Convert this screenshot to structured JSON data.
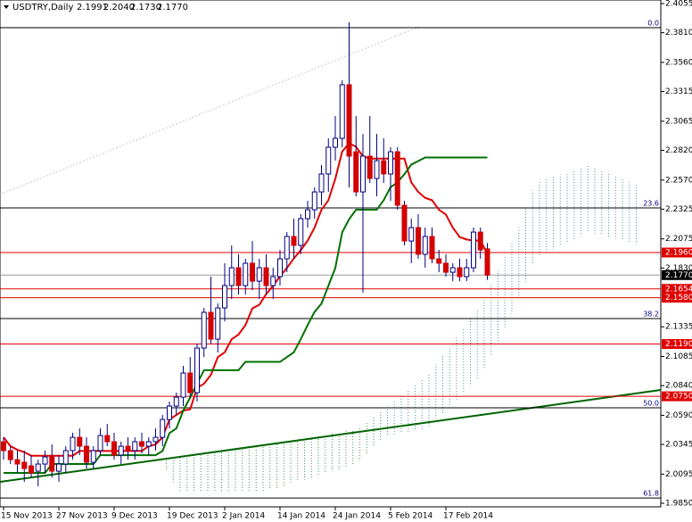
{
  "chart_data": {
    "type": "candlestick",
    "title": "USDTRY,Daily",
    "quote": [
      "2.1991",
      "2.2040",
      "2.1730",
      "2.1770"
    ],
    "categories": [
      "15 Nov 2013",
      null,
      null,
      null,
      null,
      null,
      null,
      null,
      "27 Nov 2013",
      null,
      null,
      null,
      null,
      null,
      null,
      null,
      "9 Dec 2013",
      null,
      null,
      null,
      null,
      null,
      null,
      null,
      "19 Dec 2013",
      null,
      null,
      null,
      null,
      null,
      null,
      null,
      "2 Jan 2014",
      null,
      null,
      null,
      null,
      null,
      null,
      null,
      "14 Jan 2014",
      null,
      null,
      null,
      null,
      null,
      null,
      null,
      "24 Jan 2014",
      null,
      null,
      null,
      null,
      null,
      null,
      null,
      "5 Feb 2014",
      null,
      null,
      null,
      null,
      null,
      null,
      null,
      "17 Feb 2014",
      null,
      null,
      null,
      null,
      null,
      null
    ],
    "open": [
      2.0368,
      2.0293,
      2.0217,
      2.0195,
      2.0165,
      2.012,
      2.018,
      2.024,
      2.012,
      2.018,
      2.0293,
      2.0405,
      2.033,
      2.0195,
      2.0293,
      2.042,
      2.0368,
      2.0255,
      2.033,
      2.0293,
      2.0368,
      2.033,
      2.0368,
      2.0405,
      2.0555,
      2.0668,
      2.0743,
      2.0946,
      2.0781,
      2.1156,
      2.1457,
      2.1231,
      2.1494,
      2.1682,
      2.1832,
      2.1682,
      2.187,
      2.1719,
      2.1832,
      2.1682,
      2.1757,
      2.1907,
      2.2095,
      2.202,
      2.2245,
      2.232,
      2.247,
      2.2621,
      2.2846,
      2.2921,
      2.3372,
      2.2808,
      2.247,
      2.2771,
      2.2583,
      2.2733,
      2.2621,
      2.2808,
      2.2358,
      2.2057,
      2.217,
      2.1945,
      2.2095,
      2.1907,
      2.187,
      2.1794,
      2.1832,
      2.1757,
      2.1832,
      2.2132,
      2.1991
    ],
    "high": [
      2.0405,
      2.033,
      2.0293,
      2.0293,
      2.0255,
      2.0217,
      2.0293,
      2.0345,
      2.0255,
      2.033,
      2.0443,
      2.048,
      2.0405,
      2.033,
      2.048,
      2.0518,
      2.0443,
      2.0368,
      2.0405,
      2.0405,
      2.0443,
      2.0405,
      2.048,
      2.0593,
      2.0706,
      2.0781,
      2.1006,
      2.1081,
      2.1194,
      2.1494,
      2.1757,
      2.1532,
      2.187,
      2.202,
      2.1945,
      2.1907,
      2.2057,
      2.1907,
      2.1945,
      2.1832,
      2.1982,
      2.2132,
      2.2245,
      2.2283,
      2.2395,
      2.2508,
      2.2696,
      2.2921,
      2.3109,
      2.3409,
      2.3897,
      2.3109,
      2.2958,
      2.3109,
      2.2958,
      2.2921,
      2.2846,
      2.2846,
      2.2395,
      2.2245,
      2.2283,
      2.217,
      2.217,
      2.1982,
      2.1945,
      2.187,
      2.1907,
      2.1907,
      2.217,
      2.217,
      2.204
    ],
    "low": [
      2.0217,
      2.018,
      2.0105,
      2.003,
      2.0067,
      1.9992,
      2.0105,
      2.0067,
      2.003,
      2.0105,
      2.0217,
      2.0255,
      2.0142,
      2.0142,
      2.0255,
      2.033,
      2.0217,
      2.018,
      2.0217,
      2.0217,
      2.027,
      2.0255,
      2.0293,
      2.033,
      2.048,
      2.0593,
      2.0668,
      2.0743,
      2.0706,
      2.1081,
      2.1194,
      2.1119,
      2.1381,
      2.1569,
      2.1607,
      2.1607,
      2.1644,
      2.1569,
      2.1607,
      2.1569,
      2.1682,
      2.1794,
      2.1907,
      2.1945,
      2.217,
      2.2245,
      2.2358,
      2.247,
      2.2733,
      2.2846,
      2.2508,
      2.2433,
      2.1622,
      2.2545,
      2.2433,
      2.2545,
      2.2395,
      2.232,
      2.202,
      2.187,
      2.1907,
      2.1832,
      2.187,
      2.1794,
      2.1757,
      2.1719,
      2.1719,
      2.1719,
      2.1794,
      2.1907,
      2.173
    ],
    "close": [
      2.0293,
      2.0217,
      2.018,
      2.0142,
      2.0105,
      2.018,
      2.024,
      2.012,
      2.018,
      2.0293,
      2.0405,
      2.033,
      2.0195,
      2.0293,
      2.042,
      2.0368,
      2.0255,
      2.033,
      2.0293,
      2.0368,
      2.033,
      2.0368,
      2.0405,
      2.0555,
      2.0668,
      2.0743,
      2.0946,
      2.0781,
      2.1156,
      2.1457,
      2.1231,
      2.1494,
      2.1682,
      2.1832,
      2.1682,
      2.187,
      2.1719,
      2.1832,
      2.1682,
      2.1757,
      2.1907,
      2.2095,
      2.202,
      2.2245,
      2.232,
      2.247,
      2.2621,
      2.2846,
      2.2921,
      2.3372,
      2.2771,
      2.247,
      2.2771,
      2.2583,
      2.2733,
      2.2621,
      2.2808,
      2.2358,
      2.2057,
      2.217,
      2.1945,
      2.2095,
      2.1907,
      2.187,
      2.1794,
      2.1832,
      2.1757,
      2.1832,
      2.2132,
      2.1982,
      2.177
    ],
    "bull_color": "#ffffff",
    "bear_color": "#d40000",
    "candle_outline": "#000080",
    "lines": [
      {
        "color": "#e00000",
        "values": [
          2.0405,
          2.033,
          2.03,
          2.028,
          2.025,
          2.025,
          2.025,
          2.025,
          2.025,
          2.025,
          2.025,
          2.029,
          2.029,
          2.029,
          2.029,
          2.029,
          2.029,
          2.029,
          2.029,
          2.029,
          2.029,
          2.033,
          2.0345,
          2.0405,
          2.0555,
          2.0593,
          2.063,
          2.064,
          2.082,
          2.0856,
          2.093,
          2.108,
          2.112,
          2.123,
          2.127,
          2.135,
          2.149,
          2.152,
          2.161,
          2.168,
          2.176,
          2.183,
          2.191,
          2.198,
          2.206,
          2.217,
          2.232,
          2.24,
          2.258,
          2.281,
          2.288,
          2.285,
          2.277,
          2.275,
          2.275,
          2.275,
          2.275,
          2.275,
          2.275,
          2.255,
          2.247,
          2.242,
          2.24,
          2.232,
          2.228,
          2.217,
          2.209,
          2.207,
          2.206,
          2.206,
          2.195
        ]
      },
      {
        "color": "#007000",
        "values": [
          2.0105,
          2.0105,
          2.0105,
          2.0105,
          2.0105,
          2.0105,
          2.0105,
          2.018,
          2.018,
          2.018,
          2.018,
          2.018,
          2.018,
          2.018,
          2.0255,
          2.0255,
          2.0255,
          2.0255,
          2.0255,
          2.0255,
          2.0255,
          2.0255,
          2.0255,
          2.029,
          2.044,
          2.048,
          2.063,
          2.074,
          2.0856,
          2.097,
          2.097,
          2.097,
          2.097,
          2.097,
          2.097,
          2.104,
          2.104,
          2.104,
          2.104,
          2.104,
          2.104,
          2.108,
          2.112,
          2.123,
          2.135,
          2.146,
          2.153,
          2.168,
          2.183,
          2.213,
          2.224,
          2.232,
          2.232,
          2.232,
          2.232,
          2.24,
          2.251,
          2.255,
          2.262,
          2.27,
          2.273,
          2.276,
          2.276,
          2.276,
          2.276,
          2.276,
          2.276,
          2.276,
          2.276,
          2.276,
          2.276
        ]
      }
    ],
    "ylim": [
      1.985,
      2.4055
    ],
    "yticks": [
      2.4055,
      {
        "value": 2.381,
        "label": "2.3810"
      },
      {
        "value": 2.356,
        "label": "2.3560"
      },
      2.3315,
      2.3065,
      {
        "value": 2.282,
        "label": "2.2820"
      },
      {
        "value": 2.257,
        "label": "2.2570"
      },
      2.2325,
      2.2075,
      {
        "value": 2.183,
        "label": "2.1830"
      },
      2.1335,
      2.1085,
      {
        "value": 2.084,
        "label": "2.0840"
      },
      {
        "value": 2.059,
        "label": "2.0590"
      },
      2.0345,
      2.0095,
      {
        "value": 1.985,
        "label": "1.9850"
      }
    ],
    "levels": [
      {
        "value": 2.196,
        "label": "2.1960",
        "color": "#e00000"
      },
      {
        "value": 2.177,
        "label": "2.1770",
        "color": "#000000"
      },
      {
        "value": 2.1654,
        "label": "2.1654",
        "color": "#e00000"
      },
      {
        "value": 2.158,
        "label": "2.1580",
        "color": "#e00000"
      },
      {
        "value": 2.119,
        "label": "2.1190",
        "color": "#e00000"
      },
      {
        "value": 2.075,
        "label": "2.0750",
        "color": "#e00000"
      }
    ],
    "fibo": [
      {
        "label": "0.0",
        "price": 2.3852
      },
      {
        "label": "23.6",
        "price": 2.2335
      },
      {
        "label": "38.2",
        "price": 2.1404
      },
      {
        "label": "50.0",
        "price": 2.0653
      },
      {
        "label": "61.8",
        "price": 1.9894
      }
    ]
  }
}
